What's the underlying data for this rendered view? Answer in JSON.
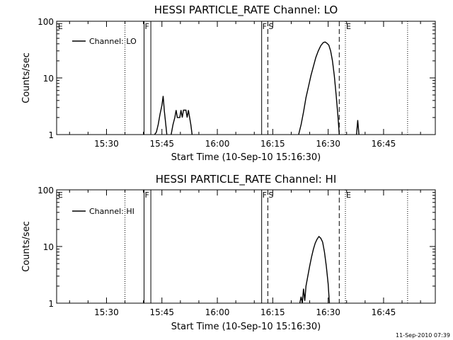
{
  "footer_stamp": "11-Sep-2010 07:39",
  "chart_data": [
    {
      "type": "line",
      "title": "HESSI PARTICLE_RATE Channel: LO",
      "xlabel": "Start Time (10-Sep-10 15:16:30)",
      "ylabel": "Counts/sec",
      "yscale": "log",
      "ylim": [
        1,
        100
      ],
      "xlim": [
        "15:16:30",
        "16:59:00"
      ],
      "x_ticks": [
        "15:30",
        "15:45",
        "16:00",
        "16:15",
        "16:30",
        "16:45"
      ],
      "y_ticks": [
        "1",
        "10",
        "100"
      ],
      "legend": {
        "entries": [
          "Channel: LO"
        ],
        "placement": "top-left"
      },
      "grid": false,
      "markers": [
        {
          "label": "E",
          "time": "15:16:40",
          "style": "none"
        },
        {
          "label": "",
          "time": "15:35:00",
          "style": "dotted"
        },
        {
          "label": "F",
          "time": "15:40:10",
          "style": "solid"
        },
        {
          "label": "",
          "time": "15:42:00",
          "style": "solid"
        },
        {
          "label": "F",
          "time": "16:12:00",
          "style": "solid"
        },
        {
          "label": "S",
          "time": "16:13:40",
          "style": "dashed"
        },
        {
          "label": "",
          "time": "16:33:00",
          "style": "dashed"
        },
        {
          "label": "E",
          "time": "16:34:40",
          "style": "dotted"
        },
        {
          "label": "",
          "time": "16:51:30",
          "style": "dotted"
        }
      ],
      "series": [
        {
          "name": "Channel: LO",
          "segments": [
            [
              [
                "15:43:00",
                1
              ],
              [
                "15:43:30",
                1.1
              ],
              [
                "15:44:00",
                1.5
              ],
              [
                "15:44:30",
                2.3
              ],
              [
                "15:45:00",
                3.3
              ],
              [
                "15:45:20",
                4.8
              ],
              [
                "15:45:40",
                2.6
              ],
              [
                "15:46:00",
                1.6
              ],
              [
                "15:46:20",
                1
              ]
            ],
            [
              [
                "15:47:30",
                1
              ],
              [
                "15:48:00",
                1.5
              ],
              [
                "15:48:30",
                2
              ],
              [
                "15:48:50",
                2.7
              ],
              [
                "15:49:10",
                2
              ],
              [
                "15:49:50",
                2
              ],
              [
                "15:50:10",
                2.7
              ],
              [
                "15:50:30",
                2
              ],
              [
                "15:50:50",
                2.7
              ],
              [
                "15:51:30",
                2.7
              ],
              [
                "15:51:50",
                2
              ],
              [
                "15:52:10",
                2.7
              ],
              [
                "15:52:30",
                2
              ],
              [
                "15:52:50",
                1.5
              ],
              [
                "15:53:10",
                1
              ]
            ],
            [
              [
                "16:22:00",
                1
              ],
              [
                "16:22:40",
                1.5
              ],
              [
                "16:23:20",
                2.5
              ],
              [
                "16:24:00",
                4.5
              ],
              [
                "16:24:40",
                7
              ],
              [
                "16:25:20",
                11
              ],
              [
                "16:26:00",
                16
              ],
              [
                "16:26:40",
                23
              ],
              [
                "16:27:20",
                30
              ],
              [
                "16:28:00",
                37
              ],
              [
                "16:28:40",
                42
              ],
              [
                "16:29:10",
                43
              ],
              [
                "16:29:40",
                41
              ],
              [
                "16:30:10",
                38
              ],
              [
                "16:30:40",
                30
              ],
              [
                "16:31:10",
                20
              ],
              [
                "16:31:40",
                11
              ],
              [
                "16:32:10",
                5
              ],
              [
                "16:32:40",
                2
              ],
              [
                "16:33:00",
                1
              ]
            ],
            [
              [
                "16:37:40",
                1
              ],
              [
                "16:38:00",
                1.8
              ],
              [
                "16:38:20",
                1
              ]
            ]
          ]
        }
      ]
    },
    {
      "type": "line",
      "title": "HESSI PARTICLE_RATE Channel: HI",
      "xlabel": "Start Time (10-Sep-10 15:16:30)",
      "ylabel": "Counts/sec",
      "yscale": "log",
      "ylim": [
        1,
        100
      ],
      "xlim": [
        "15:16:30",
        "16:59:00"
      ],
      "x_ticks": [
        "15:30",
        "15:45",
        "16:00",
        "16:15",
        "16:30",
        "16:45"
      ],
      "y_ticks": [
        "1",
        "10",
        "100"
      ],
      "legend": {
        "entries": [
          "Channel: HI"
        ],
        "placement": "top-left"
      },
      "grid": false,
      "markers": [
        {
          "label": "E",
          "time": "15:16:40",
          "style": "none"
        },
        {
          "label": "",
          "time": "15:35:00",
          "style": "dotted"
        },
        {
          "label": "F",
          "time": "15:40:10",
          "style": "solid"
        },
        {
          "label": "",
          "time": "15:42:00",
          "style": "solid"
        },
        {
          "label": "F",
          "time": "16:12:00",
          "style": "solid"
        },
        {
          "label": "S",
          "time": "16:13:40",
          "style": "dashed"
        },
        {
          "label": "",
          "time": "16:33:00",
          "style": "dashed"
        },
        {
          "label": "E",
          "time": "16:34:40",
          "style": "dotted"
        },
        {
          "label": "",
          "time": "16:51:30",
          "style": "dotted"
        }
      ],
      "series": [
        {
          "name": "Channel: HI",
          "segments": [
            [
              [
                "16:22:20",
                1
              ],
              [
                "16:22:40",
                1.3
              ],
              [
                "16:23:00",
                1
              ],
              [
                "16:23:20",
                1.8
              ],
              [
                "16:23:40",
                1.1
              ],
              [
                "16:24:00",
                2
              ],
              [
                "16:24:30",
                3
              ],
              [
                "16:25:00",
                4.5
              ],
              [
                "16:25:30",
                6.5
              ],
              [
                "16:26:00",
                9
              ],
              [
                "16:26:30",
                11.5
              ],
              [
                "16:27:00",
                13.5
              ],
              [
                "16:27:30",
                15
              ],
              [
                "16:28:00",
                14
              ],
              [
                "16:28:30",
                12
              ],
              [
                "16:29:00",
                8
              ],
              [
                "16:29:30",
                4.5
              ],
              [
                "16:30:00",
                2.2
              ],
              [
                "16:30:20",
                1
              ]
            ]
          ]
        }
      ]
    }
  ]
}
